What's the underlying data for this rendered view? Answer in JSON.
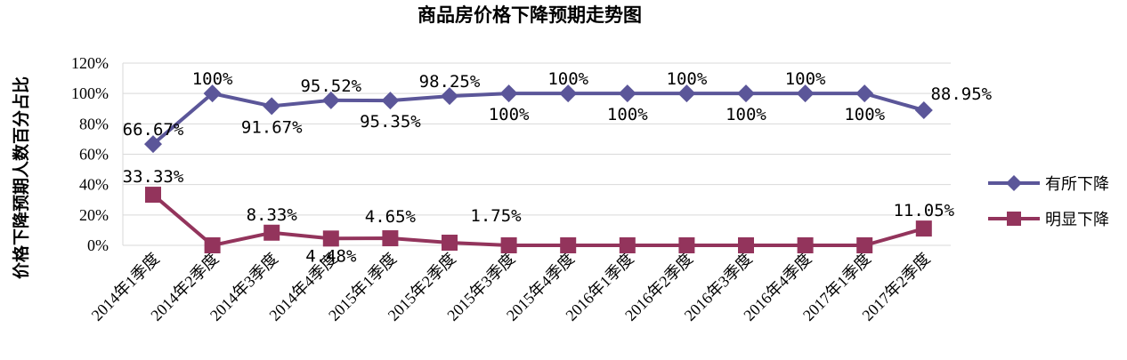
{
  "chart_data": {
    "type": "line",
    "title": "商品房价格下降预期走势图",
    "ylabel": "价格下降预期人数百分占比",
    "xlabel": "",
    "ylim": [
      0,
      120
    ],
    "yticks": [
      "0%",
      "20%",
      "40%",
      "60%",
      "80%",
      "100%",
      "120%"
    ],
    "grid": true,
    "legend": "right",
    "categories": [
      "2014年1季度",
      "2014年2季度",
      "2014年3季度",
      "2014年4季度",
      "2015年1季度",
      "2015年2季度",
      "2015年3季度",
      "2015年4季度",
      "2016年1季度",
      "2016年2季度",
      "2016年3季度",
      "2016年4季度",
      "2017年1季度",
      "2017年2季度"
    ],
    "series": [
      {
        "name": "有所下降",
        "color": "#5b5699",
        "marker": "diamond",
        "values": [
          66.67,
          100,
          91.67,
          95.52,
          95.35,
          98.25,
          100,
          100,
          100,
          100,
          100,
          100,
          100,
          88.95
        ],
        "labels": [
          "66.67%",
          "100%",
          "91.67%",
          "95.52%",
          "95.35%",
          "98.25%",
          "100%",
          "100%",
          "100%",
          "100%",
          "100%",
          "100%",
          "100%",
          "88.95%"
        ]
      },
      {
        "name": "明显下降",
        "color": "#93345c",
        "marker": "square",
        "values": [
          33.33,
          0,
          8.33,
          4.48,
          4.65,
          1.75,
          0,
          0,
          0,
          0,
          0,
          0,
          0,
          11.05
        ],
        "labels": [
          "33.33%",
          "",
          "8.33%",
          "4.48%",
          "4.65%",
          "1.75%",
          "",
          "",
          "",
          "",
          "",
          "",
          "",
          "11.05%"
        ]
      }
    ]
  }
}
